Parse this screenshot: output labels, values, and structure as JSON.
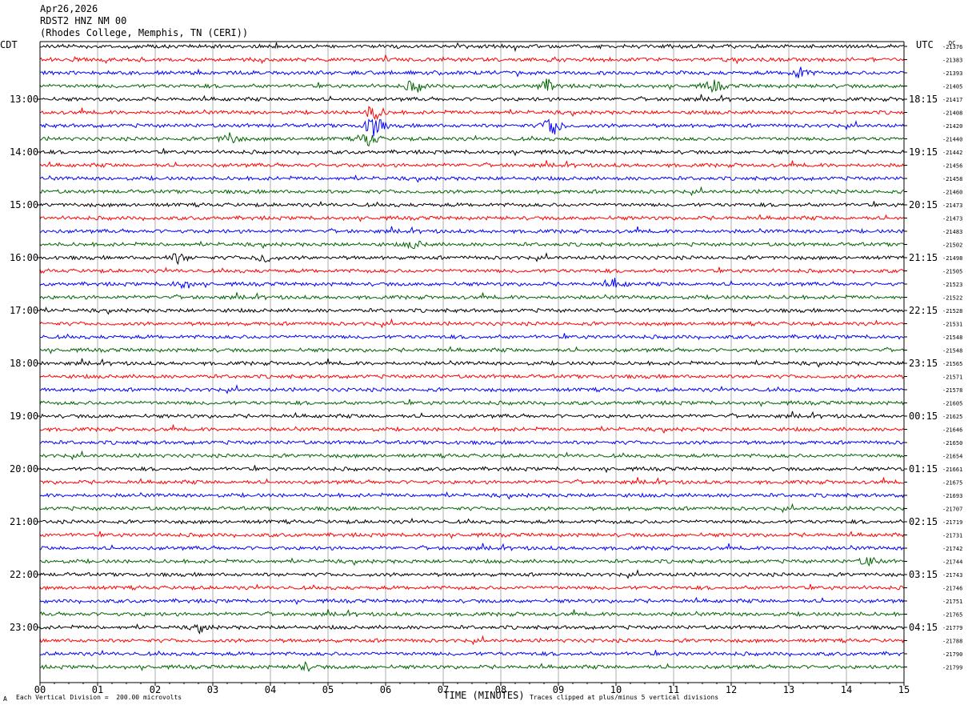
{
  "header": {
    "date": "Apr26,2026",
    "station": "RDST2 HNZ NM 00",
    "site": "(Rhodes College, Memphis, TN (CERI))"
  },
  "labels": {
    "left_tz": "CDT",
    "right_tz": "UTC",
    "dc_header": "DC",
    "footer_left": "Each Vertical Division =  200.00 microvolts",
    "footer_right": "Traces clipped at plus/minus 5 vertical divisions",
    "footer_mark": "A"
  },
  "chart_data": {
    "type": "line",
    "title": "",
    "xlabel": "TIME (MINUTES)",
    "ylabel": "",
    "xlim": [
      0,
      15
    ],
    "x_ticks": [
      "00",
      "01",
      "02",
      "03",
      "04",
      "05",
      "06",
      "07",
      "08",
      "09",
      "10",
      "11",
      "12",
      "13",
      "14",
      "15"
    ],
    "grid": true,
    "trace_colors": [
      "#000000",
      "#ff0000",
      "#0000ff",
      "#006400"
    ],
    "left_time_labels": [
      {
        "row": 4,
        "label": "13:00"
      },
      {
        "row": 8,
        "label": "14:00"
      },
      {
        "row": 12,
        "label": "15:00"
      },
      {
        "row": 16,
        "label": "16:00"
      },
      {
        "row": 20,
        "label": "17:00"
      },
      {
        "row": 24,
        "label": "18:00"
      },
      {
        "row": 28,
        "label": "19:00"
      },
      {
        "row": 32,
        "label": "20:00"
      },
      {
        "row": 36,
        "label": "21:00"
      },
      {
        "row": 40,
        "label": "22:00"
      },
      {
        "row": 44,
        "label": "23:00"
      }
    ],
    "right_time_labels": [
      {
        "row": 4,
        "label": "18:15"
      },
      {
        "row": 8,
        "label": "19:15"
      },
      {
        "row": 12,
        "label": "20:15"
      },
      {
        "row": 16,
        "label": "21:15"
      },
      {
        "row": 20,
        "label": "22:15"
      },
      {
        "row": 24,
        "label": "23:15"
      },
      {
        "row": 28,
        "label": "00:15"
      },
      {
        "row": 32,
        "label": "01:15"
      },
      {
        "row": 36,
        "label": "02:15"
      },
      {
        "row": 40,
        "label": "03:15"
      },
      {
        "row": 44,
        "label": "04:15"
      }
    ],
    "dc_offsets": [
      "-21376",
      "-21383",
      "-21393",
      "-21405",
      "-21417",
      "-21408",
      "-21420",
      "-21440",
      "-21442",
      "-21456",
      "-21458",
      "-21460",
      "-21473",
      "-21473",
      "-21483",
      "-21502",
      "-21498",
      "-21505",
      "-21523",
      "-21522",
      "-21528",
      "-21531",
      "-21548",
      "-21548",
      "-21565",
      "-21571",
      "-21578",
      "-21605",
      "-21625",
      "-21646",
      "-21650",
      "-21654",
      "-21661",
      "-21675",
      "-21693",
      "-21707",
      "-21719",
      "-21731",
      "-21742",
      "-21744",
      "-21743",
      "-21746",
      "-21751",
      "-21765",
      "-21779",
      "-21788",
      "-21790",
      "-21799"
    ],
    "events": [
      {
        "row": 5,
        "minute": 5.8,
        "amplitude": 3.5
      },
      {
        "row": 6,
        "minute": 5.8,
        "amplitude": 5
      },
      {
        "row": 6,
        "minute": 8.9,
        "amplitude": 4
      },
      {
        "row": 7,
        "minute": 5.7,
        "amplitude": 3
      },
      {
        "row": 7,
        "minute": 3.3,
        "amplitude": 2.5
      },
      {
        "row": 3,
        "minute": 6.5,
        "amplitude": 3
      },
      {
        "row": 3,
        "minute": 8.8,
        "amplitude": 2.5
      },
      {
        "row": 3,
        "minute": 11.7,
        "amplitude": 2.5
      },
      {
        "row": 2,
        "minute": 13.2,
        "amplitude": 2.5
      },
      {
        "row": 16,
        "minute": 3.9,
        "amplitude": 2
      },
      {
        "row": 16,
        "minute": 2.4,
        "amplitude": 2
      },
      {
        "row": 18,
        "minute": 2.5,
        "amplitude": 1.8
      },
      {
        "row": 18,
        "minute": 10.0,
        "amplitude": 2
      },
      {
        "row": 15,
        "minute": 6.5,
        "amplitude": 1.6
      },
      {
        "row": 39,
        "minute": 14.4,
        "amplitude": 2
      },
      {
        "row": 44,
        "minute": 2.8,
        "amplitude": 1.4
      },
      {
        "row": 47,
        "minute": 4.6,
        "amplitude": 1.4
      }
    ]
  }
}
